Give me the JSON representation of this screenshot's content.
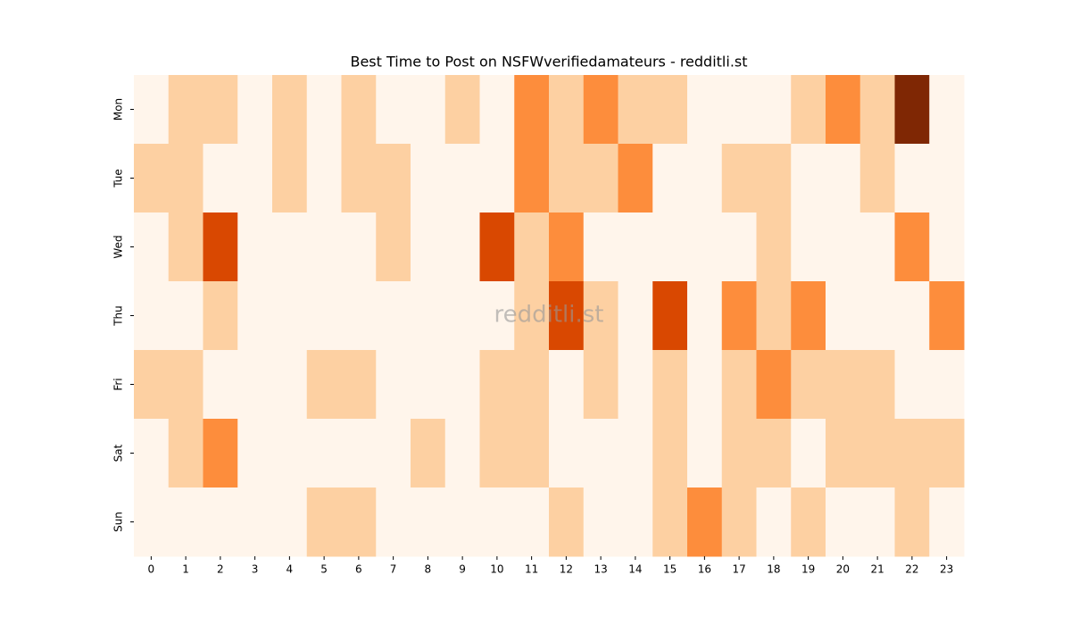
{
  "chart_data": {
    "type": "heatmap",
    "title": "Best Time to Post on NSFWverifiedamateurs - redditli.st",
    "watermark": "redditli.st",
    "x": [
      "0",
      "1",
      "2",
      "3",
      "4",
      "5",
      "6",
      "7",
      "8",
      "9",
      "10",
      "11",
      "12",
      "13",
      "14",
      "15",
      "16",
      "17",
      "18",
      "19",
      "20",
      "21",
      "22",
      "23"
    ],
    "y": [
      "Mon",
      "Tue",
      "Wed",
      "Thu",
      "Fri",
      "Sat",
      "Sun"
    ],
    "values": [
      [
        0,
        1,
        1,
        0,
        1,
        0,
        1,
        0,
        0,
        1,
        0,
        2,
        1,
        2,
        1,
        1,
        0,
        0,
        0,
        1,
        2,
        1,
        4,
        0
      ],
      [
        1,
        1,
        0,
        0,
        1,
        0,
        1,
        1,
        0,
        0,
        0,
        2,
        1,
        1,
        2,
        0,
        0,
        1,
        1,
        0,
        0,
        1,
        0,
        0
      ],
      [
        0,
        1,
        3,
        0,
        0,
        0,
        0,
        1,
        0,
        0,
        3,
        1,
        2,
        0,
        0,
        0,
        0,
        0,
        1,
        0,
        0,
        0,
        2,
        0
      ],
      [
        0,
        0,
        1,
        0,
        0,
        0,
        0,
        0,
        0,
        0,
        0,
        1,
        3,
        1,
        0,
        3,
        0,
        2,
        1,
        2,
        0,
        0,
        0,
        2
      ],
      [
        1,
        1,
        0,
        0,
        0,
        1,
        1,
        0,
        0,
        0,
        1,
        1,
        0,
        1,
        0,
        1,
        0,
        1,
        2,
        1,
        1,
        1,
        0,
        0
      ],
      [
        0,
        1,
        2,
        0,
        0,
        0,
        0,
        0,
        1,
        0,
        1,
        1,
        0,
        0,
        0,
        1,
        0,
        1,
        1,
        0,
        1,
        1,
        1,
        1
      ],
      [
        0,
        0,
        0,
        0,
        0,
        1,
        1,
        0,
        0,
        0,
        0,
        0,
        1,
        0,
        0,
        1,
        2,
        1,
        0,
        1,
        0,
        0,
        1,
        0
      ]
    ],
    "colors": [
      "#fff5eb",
      "#fdd0a2",
      "#fd8d3c",
      "#d94801",
      "#7f2704"
    ]
  }
}
